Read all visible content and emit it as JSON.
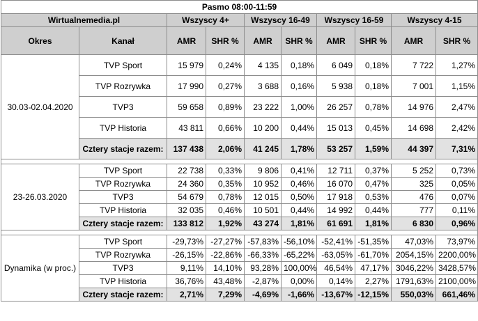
{
  "title": "Pasmo 08:00-11:59",
  "source": "Wirtualnemedia.pl",
  "groups": [
    "Wszyscy 4+",
    "Wszyscy 16-49",
    "Wszyscy 16-59",
    "Wszyscy 4-15"
  ],
  "col_okres": "Okres",
  "col_kanal": "Kanał",
  "amr": "AMR",
  "shr": "SHR %",
  "sections": [
    {
      "period": "30.03-02.04.2020",
      "rows": [
        {
          "channel": "TVP Sport",
          "v": [
            "15 979",
            "0,24%",
            "4 135",
            "0,18%",
            "6 049",
            "0,18%",
            "7 722",
            "1,27%"
          ]
        },
        {
          "channel": "TVP Rozrywka",
          "v": [
            "17 990",
            "0,27%",
            "3 688",
            "0,16%",
            "5 938",
            "0,18%",
            "7 001",
            "1,15%"
          ]
        },
        {
          "channel": "TVP3",
          "v": [
            "59 658",
            "0,89%",
            "23 222",
            "1,00%",
            "26 257",
            "0,78%",
            "14 976",
            "2,47%"
          ]
        },
        {
          "channel": "TVP Historia",
          "v": [
            "43 811",
            "0,66%",
            "10 200",
            "0,44%",
            "15 013",
            "0,45%",
            "14 698",
            "2,42%"
          ]
        },
        {
          "channel": "Cztery stacje razem:",
          "v": [
            "137 438",
            "2,06%",
            "41 245",
            "1,78%",
            "53 257",
            "1,59%",
            "44 397",
            "7,31%"
          ]
        }
      ]
    },
    {
      "period": "23-26.03.2020",
      "rows": [
        {
          "channel": "TVP Sport",
          "v": [
            "22 738",
            "0,33%",
            "9 806",
            "0,41%",
            "12 711",
            "0,37%",
            "5 252",
            "0,73%"
          ]
        },
        {
          "channel": "TVP Rozrywka",
          "v": [
            "24 360",
            "0,35%",
            "10 952",
            "0,46%",
            "16 070",
            "0,47%",
            "325",
            "0,05%"
          ]
        },
        {
          "channel": "TVP3",
          "v": [
            "54 679",
            "0,78%",
            "12 015",
            "0,50%",
            "17 918",
            "0,53%",
            "476",
            "0,07%"
          ]
        },
        {
          "channel": "TVP Historia",
          "v": [
            "32 035",
            "0,46%",
            "10 501",
            "0,44%",
            "14 992",
            "0,44%",
            "777",
            "0,11%"
          ]
        },
        {
          "channel": "Cztery stacje razem:",
          "v": [
            "133 812",
            "1,92%",
            "43 274",
            "1,81%",
            "61 691",
            "1,81%",
            "6 830",
            "0,96%"
          ]
        }
      ]
    },
    {
      "period": "Dynamika (w proc.)",
      "rows": [
        {
          "channel": "TVP Sport",
          "v": [
            "-29,73%",
            "-27,27%",
            "-57,83%",
            "-56,10%",
            "-52,41%",
            "-51,35%",
            "47,03%",
            "73,97%"
          ]
        },
        {
          "channel": "TVP Rozrywka",
          "v": [
            "-26,15%",
            "-22,86%",
            "-66,33%",
            "-65,22%",
            "-63,05%",
            "-61,70%",
            "2054,15%",
            "2200,00%"
          ]
        },
        {
          "channel": "TVP3",
          "v": [
            "9,11%",
            "14,10%",
            "93,28%",
            "100,00%",
            "46,54%",
            "47,17%",
            "3046,22%",
            "3428,57%"
          ]
        },
        {
          "channel": "TVP Historia",
          "v": [
            "36,76%",
            "43,48%",
            "-2,87%",
            "0,00%",
            "0,14%",
            "2,27%",
            "1791,63%",
            "2100,00%"
          ]
        },
        {
          "channel": "Cztery stacje razem:",
          "v": [
            "2,71%",
            "7,29%",
            "-4,69%",
            "-1,66%",
            "-13,67%",
            "-12,15%",
            "550,03%",
            "661,46%"
          ]
        }
      ]
    }
  ]
}
